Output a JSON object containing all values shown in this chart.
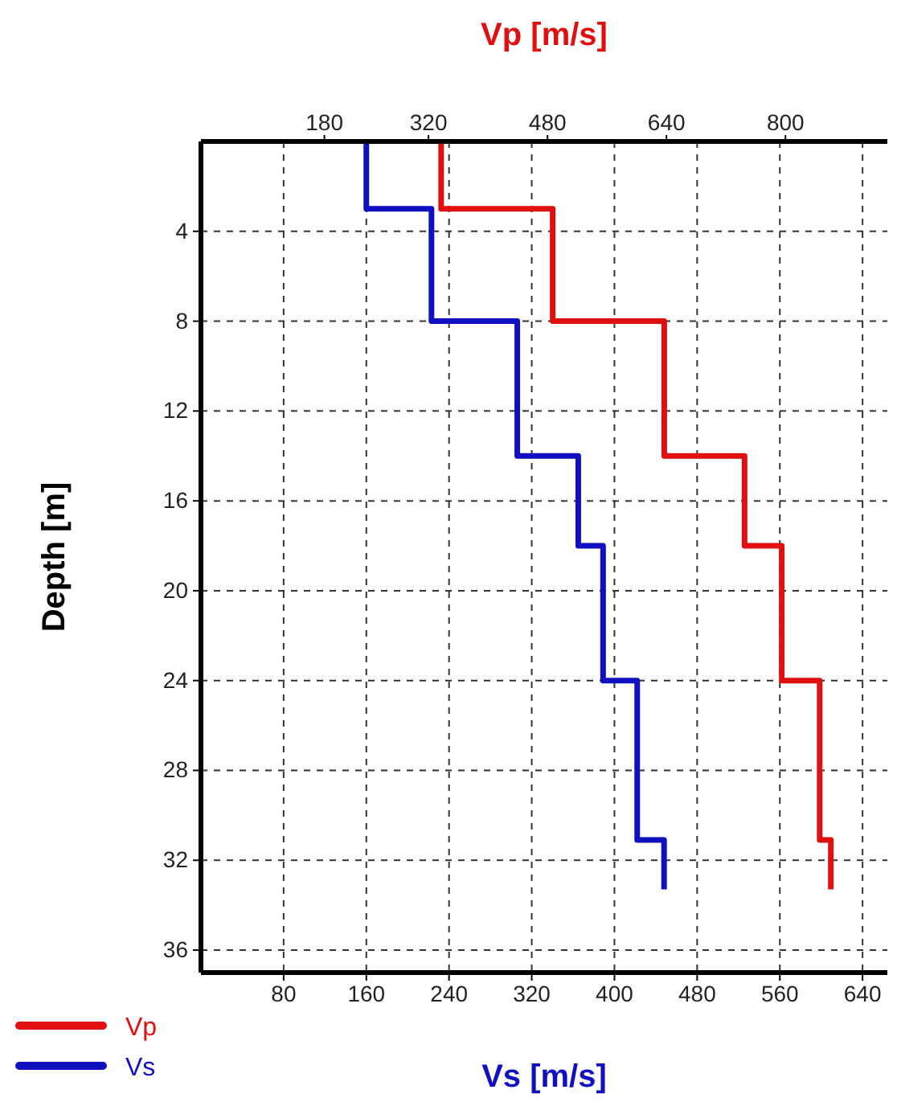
{
  "chart_data": {
    "type": "line",
    "xlabel": "Vs [m/s]",
    "x2label": "Vp [m/s]",
    "ylabel": "Depth [m]",
    "xlim": [
      0,
      664
    ],
    "xticks": [
      80,
      160,
      240,
      320,
      400,
      480,
      560,
      640
    ],
    "x2lim": [
      14,
      937
    ],
    "x2ticks": [
      180,
      320,
      480,
      640,
      800
    ],
    "ylim": [
      37,
      0
    ],
    "yticks": [
      4,
      8,
      12,
      16,
      20,
      24,
      28,
      32,
      36
    ],
    "grid": true,
    "legend": "bottom left",
    "line_style": "solid",
    "marker": "none",
    "series": [
      {
        "name": "Vp",
        "color": "#e01010",
        "axis": "x2",
        "x": [
          337,
          337,
          487,
          487,
          637,
          637,
          745,
          745,
          795,
          795,
          846,
          846,
          861,
          861
        ],
        "values": [
          0,
          3,
          3,
          8,
          8,
          14,
          14,
          18,
          18,
          24,
          24,
          31.1,
          31.1,
          33.3
        ]
      },
      {
        "name": "Vs",
        "color": "#1010c0",
        "x": [
          160,
          160,
          223,
          223,
          306,
          306,
          365,
          365,
          389,
          389,
          422,
          422,
          448,
          448
        ],
        "values": [
          0,
          3,
          3,
          8,
          8,
          14,
          14,
          18,
          18,
          24,
          24,
          31.1,
          31.1,
          33.3
        ]
      }
    ]
  }
}
